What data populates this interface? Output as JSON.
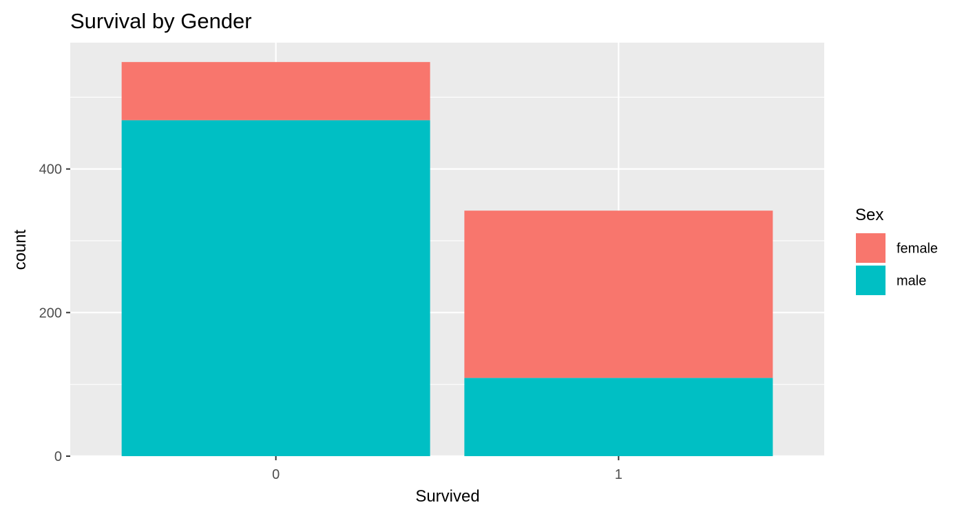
{
  "chart_data": {
    "type": "bar",
    "stacked": true,
    "title": "Survival by Gender",
    "xlabel": "Survived",
    "ylabel": "count",
    "categories": [
      "0",
      "1"
    ],
    "series": [
      {
        "name": "female",
        "values": [
          81,
          233
        ],
        "color": "#F8766D"
      },
      {
        "name": "male",
        "values": [
          468,
          109
        ],
        "color": "#00BFC4"
      }
    ],
    "ylim": [
      0,
      576
    ],
    "yticks": [
      0,
      200,
      400
    ],
    "grid": true,
    "legend": {
      "title": "Sex",
      "position": "right"
    },
    "panel_background": "#EBEBEB",
    "grid_color": "#FFFFFF"
  }
}
